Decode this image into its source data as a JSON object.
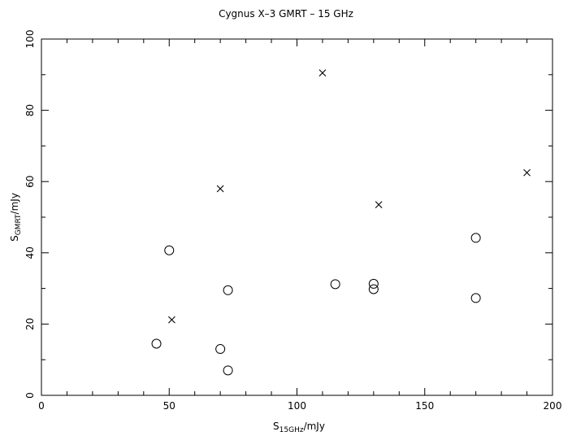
{
  "chart_data": {
    "type": "scatter",
    "title": "Cygnus X–3 GMRT – 15 GHz",
    "xlabel": {
      "main": "S",
      "sub": "15GHz",
      "unit": "/mJy"
    },
    "ylabel": {
      "main": "S",
      "sub": "GMRT",
      "unit": "/mJy"
    },
    "xlim": [
      0,
      200
    ],
    "ylim": [
      0,
      100
    ],
    "xticks": [
      0,
      50,
      100,
      150,
      200
    ],
    "yticks": [
      0,
      20,
      40,
      60,
      80,
      100
    ],
    "grid": false,
    "series": [
      {
        "marker": "circle",
        "x": [
          45,
          50,
          70,
          73,
          73,
          115,
          130,
          130,
          170,
          170
        ],
        "y": [
          14.5,
          40.7,
          13.0,
          7.0,
          29.5,
          31.2,
          31.3,
          29.8,
          44.2,
          27.3
        ]
      },
      {
        "marker": "cross",
        "x": [
          51,
          70,
          110,
          132,
          190
        ],
        "y": [
          21.2,
          58.0,
          90.5,
          53.5,
          62.5
        ]
      }
    ]
  }
}
